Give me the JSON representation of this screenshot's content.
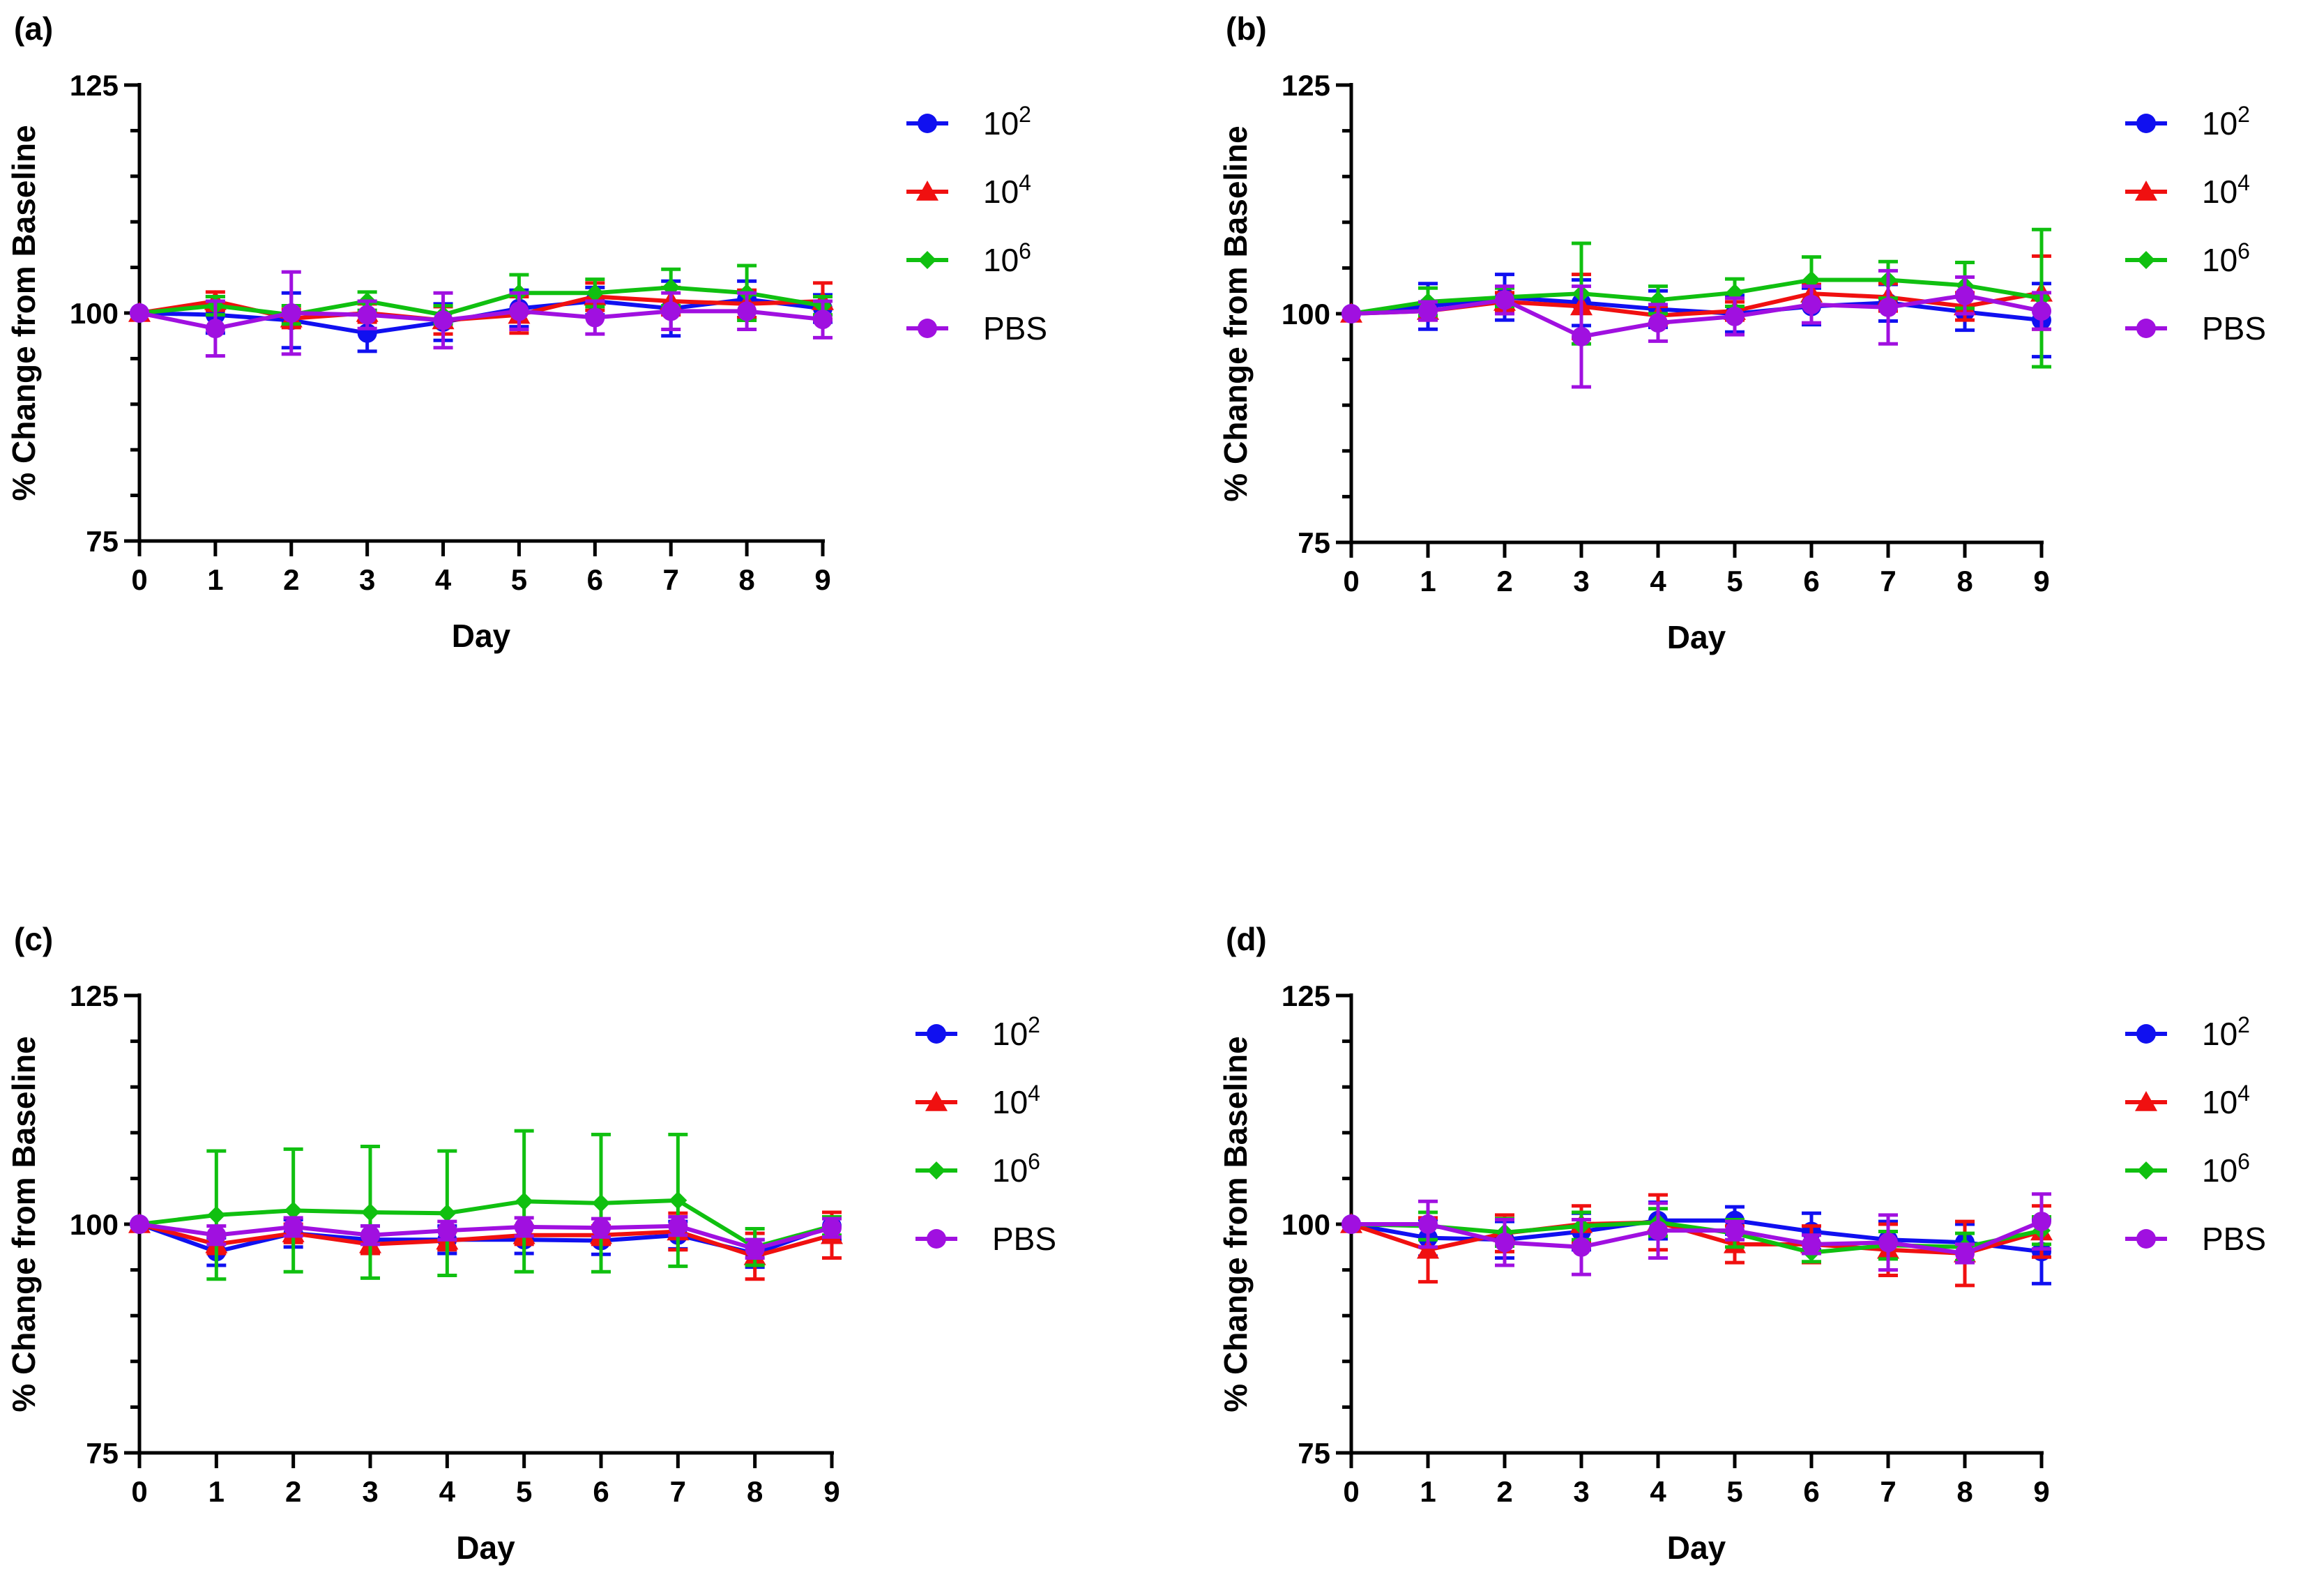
{
  "figure": {
    "series_colors": {
      "10^2": "#1010f0",
      "10^4": "#f01010",
      "10^6": "#10c010",
      "PBS": "#a010e0"
    },
    "axis_color": "#000000"
  },
  "chart_data": [
    {
      "type": "line",
      "panel_label": "(a)",
      "xlabel": "Day",
      "ylabel": "% Change from Baseline",
      "x": [
        0,
        1,
        2,
        3,
        4,
        5,
        6,
        7,
        8,
        9
      ],
      "xlim": [
        0,
        9
      ],
      "ylim": [
        75,
        125
      ],
      "yticks": [
        75,
        100,
        125
      ],
      "xtick_labels": [
        "0",
        "1",
        "2",
        "3",
        "4",
        "5",
        "6",
        "7",
        "8",
        "9"
      ],
      "ytick_labels": [
        "75",
        "100",
        "125"
      ],
      "legend_position": "right",
      "series": [
        {
          "name_base": "10",
          "name_exp": "2",
          "marker": "circle",
          "color": "#1010f0",
          "values": [
            100,
            99.8,
            99.2,
            97.8,
            99.0,
            100.5,
            101.3,
            100.5,
            101.5,
            100.5
          ],
          "errors": [
            0,
            2.0,
            3.0,
            2.0,
            2.0,
            2.0,
            1.5,
            3.0,
            2.0,
            1.5
          ]
        },
        {
          "name_base": "10",
          "name_exp": "4",
          "marker": "triangle",
          "color": "#f01010",
          "values": [
            100,
            101.3,
            99.4,
            100.0,
            99.2,
            99.8,
            101.8,
            101.3,
            101.0,
            101.3
          ],
          "errors": [
            0,
            1.0,
            1.0,
            1.0,
            1.5,
            2.0,
            1.5,
            1.5,
            1.5,
            2.0
          ]
        },
        {
          "name_base": "10",
          "name_exp": "6",
          "marker": "diamond",
          "color": "#10c010",
          "values": [
            100,
            100.8,
            99.8,
            101.3,
            99.8,
            102.2,
            102.2,
            102.8,
            102.2,
            100.8
          ],
          "errors": [
            0,
            1.0,
            1.0,
            1.0,
            1.0,
            2.0,
            1.5,
            2.0,
            3.0,
            1.0
          ]
        },
        {
          "name_base": "PBS",
          "name_exp": "",
          "marker": "circle",
          "color": "#a010e0",
          "values": [
            100,
            98.3,
            100.0,
            99.8,
            99.2,
            100.2,
            99.5,
            100.2,
            100.2,
            99.3
          ],
          "errors": [
            0,
            3.0,
            4.5,
            1.5,
            3.0,
            2.0,
            1.8,
            2.0,
            2.0,
            2.0
          ]
        }
      ]
    },
    {
      "type": "line",
      "panel_label": "(b)",
      "xlabel": "Day",
      "ylabel": "% Change from Baseline",
      "x": [
        0,
        1,
        2,
        3,
        4,
        5,
        6,
        7,
        8,
        9
      ],
      "xlim": [
        0,
        9
      ],
      "ylim": [
        75,
        125
      ],
      "yticks": [
        75,
        100,
        125
      ],
      "xtick_labels": [
        "0",
        "1",
        "2",
        "3",
        "4",
        "5",
        "6",
        "7",
        "8",
        "9"
      ],
      "ytick_labels": [
        "75",
        "100",
        "125"
      ],
      "legend_position": "right",
      "series": [
        {
          "name_base": "10",
          "name_exp": "2",
          "marker": "circle",
          "color": "#1010f0",
          "values": [
            100,
            100.8,
            101.8,
            101.2,
            100.5,
            100.0,
            100.8,
            101.2,
            100.2,
            99.3
          ],
          "errors": [
            0,
            2.5,
            2.5,
            2.5,
            2.0,
            2.0,
            2.0,
            2.0,
            2.0,
            4.0
          ]
        },
        {
          "name_base": "10",
          "name_exp": "4",
          "marker": "triangle",
          "color": "#f01010",
          "values": [
            100,
            100.3,
            101.3,
            100.8,
            99.8,
            100.3,
            102.2,
            101.8,
            100.8,
            102.3
          ],
          "errors": [
            0,
            1.0,
            1.0,
            3.5,
            1.0,
            1.0,
            1.0,
            1.5,
            1.5,
            4.0
          ]
        },
        {
          "name_base": "10",
          "name_exp": "6",
          "marker": "diamond",
          "color": "#10c010",
          "values": [
            100,
            101.3,
            101.8,
            102.2,
            101.5,
            102.3,
            103.7,
            103.7,
            103.1,
            101.7
          ],
          "errors": [
            0,
            1.5,
            1.0,
            5.5,
            1.5,
            1.5,
            2.5,
            2.0,
            2.5,
            7.5
          ]
        },
        {
          "name_base": "PBS",
          "name_exp": "",
          "marker": "circle",
          "color": "#a010e0",
          "values": [
            100,
            100.3,
            101.5,
            97.5,
            99.0,
            99.7,
            101.0,
            100.7,
            102.0,
            100.3
          ],
          "errors": [
            0,
            1.0,
            1.5,
            5.5,
            2.0,
            2.0,
            2.0,
            4.0,
            2.0,
            2.0
          ]
        }
      ]
    },
    {
      "type": "line",
      "panel_label": "(c)",
      "xlabel": "Day",
      "ylabel": "% Change from Baseline",
      "x": [
        0,
        1,
        2,
        3,
        4,
        5,
        6,
        7,
        8,
        9
      ],
      "xlim": [
        0,
        9
      ],
      "ylim": [
        75,
        125
      ],
      "yticks": [
        75,
        100,
        125
      ],
      "xtick_labels": [
        "0",
        "1",
        "2",
        "3",
        "4",
        "5",
        "6",
        "7",
        "8",
        "9"
      ],
      "ytick_labels": [
        "75",
        "100",
        "125"
      ],
      "legend_position": "right",
      "series": [
        {
          "name_base": "10",
          "name_exp": "2",
          "marker": "circle",
          "color": "#1010f0",
          "values": [
            100,
            97.0,
            99.0,
            98.3,
            98.3,
            98.3,
            98.2,
            98.8,
            96.8,
            99.8
          ],
          "errors": [
            0,
            1.5,
            1.5,
            1.5,
            1.5,
            1.5,
            1.5,
            1.5,
            1.5,
            1.5
          ]
        },
        {
          "name_base": "10",
          "name_exp": "4",
          "marker": "triangle",
          "color": "#f01010",
          "values": [
            100,
            97.8,
            99.0,
            97.8,
            98.2,
            98.8,
            98.8,
            99.2,
            96.5,
            98.8
          ],
          "errors": [
            0,
            1.0,
            1.0,
            1.0,
            1.0,
            1.0,
            1.0,
            2.0,
            2.5,
            2.5
          ]
        },
        {
          "name_base": "10",
          "name_exp": "6",
          "marker": "diamond",
          "color": "#10c010",
          "values": [
            100,
            101.0,
            101.5,
            101.3,
            101.2,
            102.5,
            102.3,
            102.6,
            97.5,
            99.8
          ],
          "errors": [
            0,
            7.0,
            6.7,
            7.2,
            6.8,
            7.7,
            7.5,
            7.2,
            2.0,
            1.0
          ]
        },
        {
          "name_base": "PBS",
          "name_exp": "",
          "marker": "circle",
          "color": "#a010e0",
          "values": [
            100,
            98.8,
            99.7,
            98.8,
            99.3,
            99.7,
            99.6,
            99.8,
            97.3,
            99.6
          ],
          "errors": [
            0,
            1.0,
            1.0,
            1.0,
            1.0,
            1.0,
            1.0,
            1.0,
            1.0,
            1.0
          ]
        }
      ]
    },
    {
      "type": "line",
      "panel_label": "(d)",
      "xlabel": "Day",
      "ylabel": "% Change from Baseline",
      "x": [
        0,
        1,
        2,
        3,
        4,
        5,
        6,
        7,
        8,
        9
      ],
      "xlim": [
        0,
        9
      ],
      "ylim": [
        75,
        125
      ],
      "yticks": [
        75,
        100,
        125
      ],
      "xtick_labels": [
        "0",
        "1",
        "2",
        "3",
        "4",
        "5",
        "6",
        "7",
        "8",
        "9"
      ],
      "ytick_labels": [
        "75",
        "100",
        "125"
      ],
      "legend_position": "right",
      "series": [
        {
          "name_base": "10",
          "name_exp": "2",
          "marker": "circle",
          "color": "#1010f0",
          "values": [
            100,
            98.5,
            98.3,
            99.2,
            100.4,
            100.4,
            99.2,
            98.3,
            98.0,
            97.0
          ],
          "errors": [
            0,
            2.0,
            2.0,
            2.0,
            2.0,
            1.5,
            2.0,
            2.0,
            2.0,
            3.5
          ]
        },
        {
          "name_base": "10",
          "name_exp": "4",
          "marker": "triangle",
          "color": "#f01010",
          "values": [
            100,
            97.2,
            99.0,
            100.0,
            100.2,
            97.8,
            97.8,
            97.2,
            96.8,
            99.2
          ],
          "errors": [
            0,
            3.5,
            2.0,
            2.0,
            3.0,
            2.0,
            2.0,
            2.8,
            3.5,
            2.8
          ]
        },
        {
          "name_base": "10",
          "name_exp": "6",
          "marker": "diamond",
          "color": "#10c010",
          "values": [
            100,
            99.8,
            99.1,
            99.8,
            100.2,
            99.0,
            96.9,
            97.7,
            97.5,
            99.3
          ],
          "errors": [
            0,
            1.5,
            1.5,
            1.5,
            1.5,
            1.5,
            1.0,
            1.5,
            1.5,
            1.5
          ]
        },
        {
          "name_base": "PBS",
          "name_exp": "",
          "marker": "circle",
          "color": "#a010e0",
          "values": [
            100,
            100.0,
            98.0,
            97.5,
            99.3,
            99.3,
            97.8,
            98.0,
            96.8,
            100.3
          ],
          "errors": [
            0,
            2.5,
            2.5,
            3.0,
            3.0,
            1.0,
            1.0,
            3.0,
            1.0,
            3.0
          ]
        }
      ]
    }
  ]
}
